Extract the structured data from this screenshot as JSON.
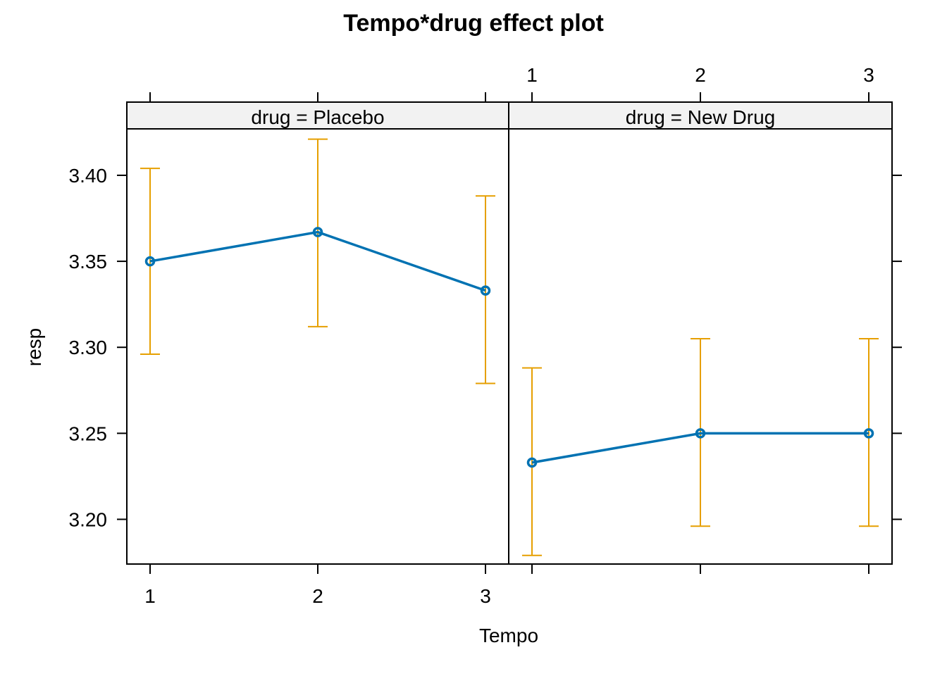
{
  "chart_data": {
    "type": "line",
    "title": "Tempo*drug effect plot",
    "xlabel": "Tempo",
    "ylabel": "resp",
    "x": [
      1,
      2,
      3
    ],
    "x_ticks": [
      "1",
      "2",
      "3"
    ],
    "ylim": [
      3.174,
      3.427
    ],
    "y_ticks": [
      "3.20",
      "3.25",
      "3.30",
      "3.35",
      "3.40"
    ],
    "y_tick_values": [
      3.2,
      3.25,
      3.3,
      3.35,
      3.4
    ],
    "colors": {
      "line": "#0072B2",
      "error_bar": "#E69F00",
      "strip_bg": "#F2F2F2"
    },
    "panels": [
      {
        "strip": "drug = Placebo",
        "fit": [
          3.35,
          3.367,
          3.333
        ],
        "lower": [
          3.296,
          3.312,
          3.279
        ],
        "upper": [
          3.404,
          3.421,
          3.388
        ]
      },
      {
        "strip": "drug = New Drug",
        "fit": [
          3.233,
          3.25,
          3.25
        ],
        "lower": [
          3.179,
          3.196,
          3.196
        ],
        "upper": [
          3.288,
          3.305,
          3.305
        ]
      }
    ]
  }
}
